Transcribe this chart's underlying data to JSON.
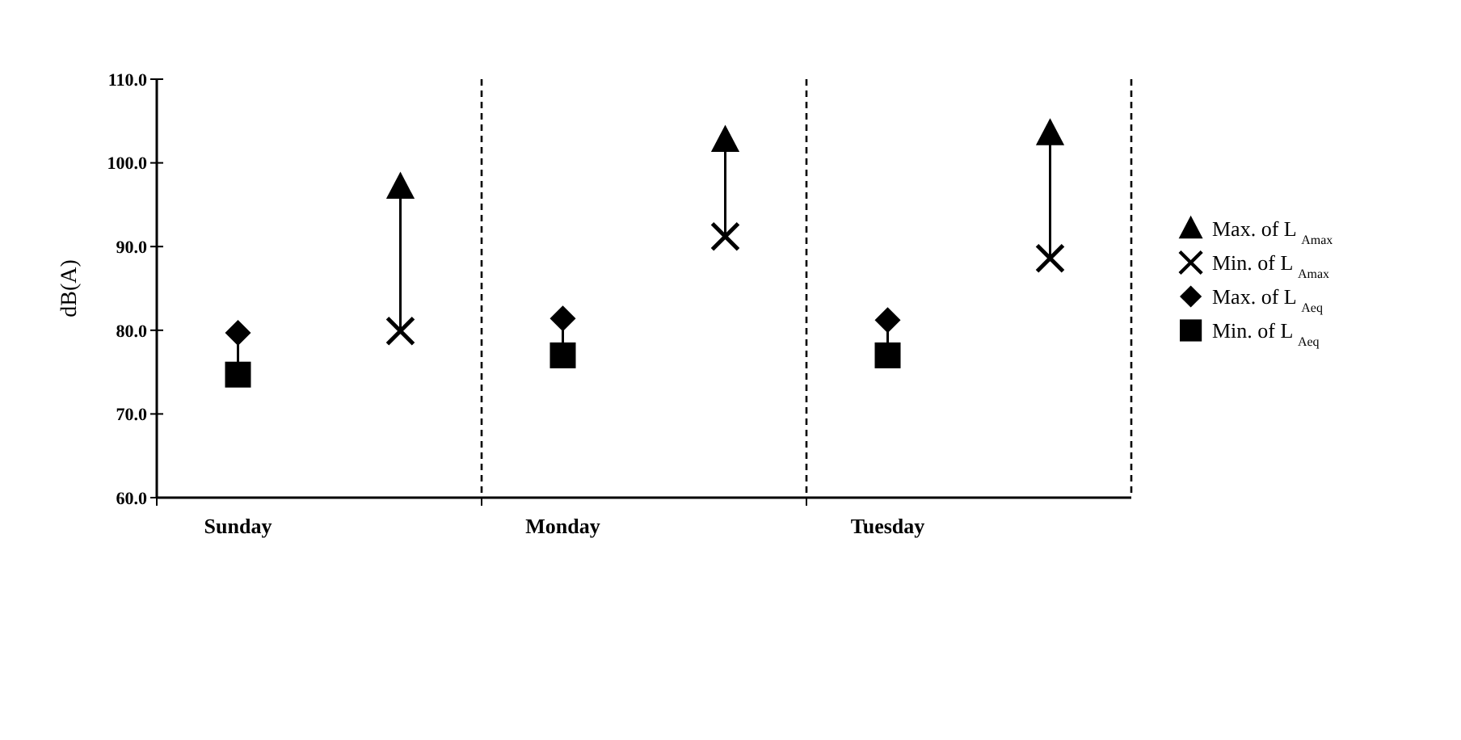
{
  "chart_data": {
    "type": "scatter",
    "ylabel": "dB(A)",
    "categories": [
      "Sunday",
      null,
      "Monday",
      null,
      "Tuesday",
      null
    ],
    "ylim": [
      60,
      110
    ],
    "yticks": [
      {
        "value": 60,
        "label": "60.0"
      },
      {
        "value": 70,
        "label": "70.0"
      },
      {
        "value": 80,
        "label": "80.0"
      },
      {
        "value": 90,
        "label": "90.0"
      },
      {
        "value": 100,
        "label": "100.0"
      },
      {
        "value": 110,
        "label": "110.0"
      }
    ],
    "legend": "right",
    "series": [
      {
        "name": "Max. of L $_{Amax}$",
        "color": "#000000",
        "marker": "triangle",
        "values": [
          null,
          97.1,
          null,
          102.7,
          null,
          103.5
        ]
      },
      {
        "name": "Min. of L $_{Amax}$",
        "color": "#000000",
        "marker": "cross",
        "values": [
          null,
          79.9,
          null,
          91.2,
          null,
          88.6
        ]
      },
      {
        "name": "Max. of L $_{Aeq}$",
        "color": "#000000",
        "marker": "diamond",
        "values": [
          79.7,
          null,
          81.4,
          null,
          81.2,
          null
        ]
      },
      {
        "name": "Min. of L $_{Aeq}$",
        "color": "#000000",
        "marker": "square",
        "values": [
          74.7,
          null,
          77.0,
          null,
          77.0,
          null
        ]
      }
    ]
  }
}
